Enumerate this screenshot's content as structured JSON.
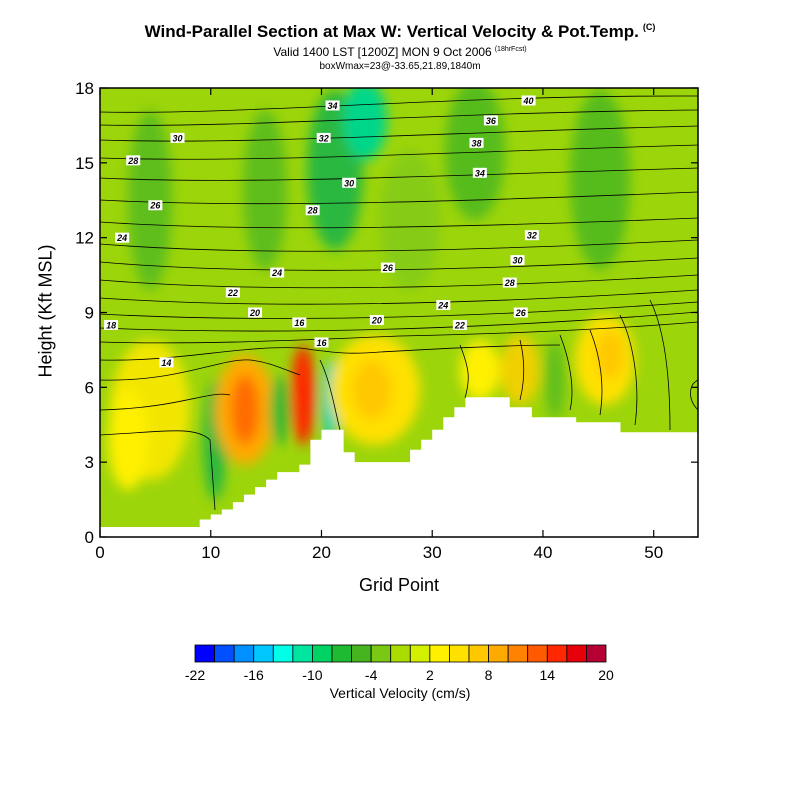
{
  "title": "Wind-Parallel Section at Max W: Vertical Velocity & Pot.Temp.",
  "title_mark": "(C)",
  "subtitle": "Valid 1400 LST [1200Z] MON 9 Oct 2006",
  "forecast_tag": "(18hrFcst)",
  "box_info": "boxWmax=23@-33.65,21.89,1840m",
  "chart_data": {
    "type": "heatmap",
    "xlabel": "Grid Point",
    "ylabel": "Height (Kft MSL)",
    "xlim": [
      0,
      54
    ],
    "ylim": [
      0,
      18
    ],
    "x_ticks": [
      0,
      10,
      20,
      30,
      40,
      50
    ],
    "y_ticks": [
      0,
      3,
      6,
      9,
      12,
      15,
      18
    ],
    "colorbar_label": "Vertical Velocity (cm/s)",
    "colorbar_tick_labels": [
      "-22",
      "-16",
      "-10",
      "-4",
      "2",
      "8",
      "14",
      "20"
    ],
    "colorbar_levels": [
      -22,
      -20,
      -18,
      -16,
      -14,
      -12,
      -10,
      -8,
      -6,
      -4,
      -2,
      0,
      2,
      4,
      6,
      8,
      10,
      12,
      14,
      16,
      18,
      20
    ],
    "colorbar_colors": [
      "#0000ff",
      "#0050ff",
      "#0090ff",
      "#00c8ff",
      "#00ffe6",
      "#00e6a0",
      "#00d264",
      "#1eba32",
      "#46b41e",
      "#78c814",
      "#aadc00",
      "#d2f000",
      "#fff000",
      "#ffe100",
      "#ffc800",
      "#ffaa00",
      "#ff8200",
      "#ff5a00",
      "#ff2800",
      "#e6000a",
      "#b40032"
    ],
    "terrain_profile": {
      "x": [
        0,
        9,
        9,
        10,
        10,
        11,
        11,
        12,
        12,
        13,
        13,
        14,
        14,
        15,
        15,
        16,
        16,
        18,
        18,
        19,
        19,
        20,
        20,
        22,
        22,
        23,
        23,
        28,
        28,
        29,
        29,
        30,
        30,
        31,
        31,
        32,
        32,
        33,
        33,
        37,
        37,
        39,
        39,
        43,
        43,
        47,
        47,
        54
      ],
      "height_kft": [
        0.4,
        0.4,
        0.7,
        0.7,
        0.9,
        0.9,
        1.1,
        1.1,
        1.4,
        1.4,
        1.7,
        1.7,
        2.0,
        2.0,
        2.3,
        2.3,
        2.6,
        2.6,
        2.9,
        2.9,
        3.9,
        3.9,
        4.3,
        4.3,
        3.4,
        3.4,
        3.0,
        3.0,
        3.5,
        3.5,
        3.9,
        3.9,
        4.3,
        4.3,
        4.8,
        4.8,
        5.2,
        5.2,
        5.6,
        5.6,
        5.2,
        5.2,
        4.8,
        4.8,
        4.6,
        4.6,
        4.2,
        4.2
      ]
    },
    "contour_labels": [
      {
        "text": "40",
        "x": 38.7,
        "y": 17.5
      },
      {
        "text": "34",
        "x": 21.0,
        "y": 17.3
      },
      {
        "text": "36",
        "x": 35.3,
        "y": 16.7
      },
      {
        "text": "32",
        "x": 20.2,
        "y": 16.0
      },
      {
        "text": "30",
        "x": 7.0,
        "y": 16.0
      },
      {
        "text": "38",
        "x": 34.0,
        "y": 15.8
      },
      {
        "text": "28",
        "x": 3.0,
        "y": 15.1
      },
      {
        "text": "34",
        "x": 34.3,
        "y": 14.6
      },
      {
        "text": "30",
        "x": 22.5,
        "y": 14.2
      },
      {
        "text": "26",
        "x": 5.0,
        "y": 13.3
      },
      {
        "text": "28",
        "x": 19.2,
        "y": 13.1
      },
      {
        "text": "24",
        "x": 2.0,
        "y": 12.0
      },
      {
        "text": "32",
        "x": 39.0,
        "y": 12.1
      },
      {
        "text": "30",
        "x": 37.7,
        "y": 11.1
      },
      {
        "text": "26",
        "x": 26.0,
        "y": 10.8
      },
      {
        "text": "24",
        "x": 16.0,
        "y": 10.6
      },
      {
        "text": "28",
        "x": 37.0,
        "y": 10.2
      },
      {
        "text": "22",
        "x": 12.0,
        "y": 9.8
      },
      {
        "text": "24",
        "x": 31.0,
        "y": 9.3
      },
      {
        "text": "26",
        "x": 38.0,
        "y": 9.0
      },
      {
        "text": "20",
        "x": 14.0,
        "y": 9.0
      },
      {
        "text": "20",
        "x": 25.0,
        "y": 8.7
      },
      {
        "text": "16",
        "x": 18.0,
        "y": 8.6
      },
      {
        "text": "22",
        "x": 32.5,
        "y": 8.5
      },
      {
        "text": "18",
        "x": 1.0,
        "y": 8.5
      },
      {
        "text": "16",
        "x": 20.0,
        "y": 7.8
      },
      {
        "text": "14",
        "x": 6.0,
        "y": 7.0
      }
    ]
  }
}
